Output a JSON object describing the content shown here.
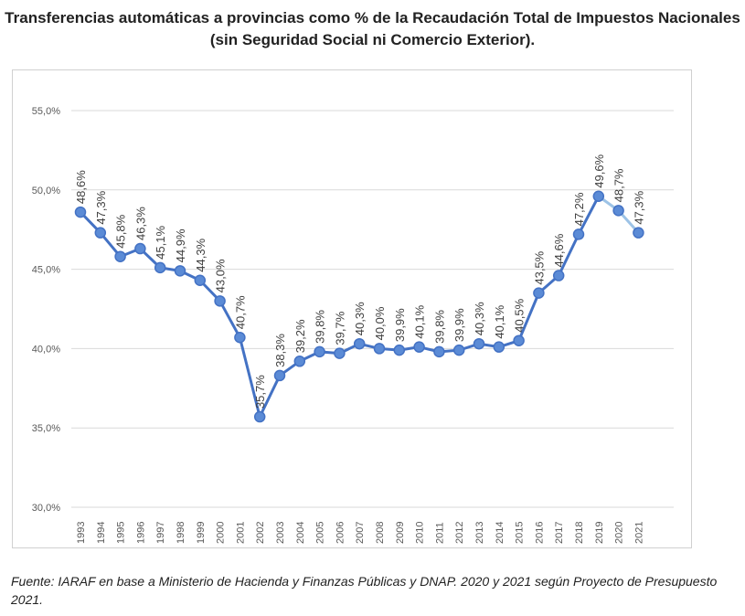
{
  "title": "Transferencias automáticas a provincias como % de la Recaudación Total de Impuestos Nacionales (sin Seguridad Social ni Comercio Exterior).",
  "source": "Fuente: IARAF en base a Ministerio de Hacienda y Finanzas Públicas y DNAP. 2020 y 2021 según Proyecto de Presupuesto 2021.",
  "chart_data": {
    "type": "line",
    "title": "Transferencias automáticas a provincias como % de la Recaudación Total de Impuestos Nacionales (sin Seguridad Social ni Comercio Exterior).",
    "xlabel": "",
    "ylabel": "",
    "ylim": [
      30,
      55
    ],
    "yticks": [
      "30,0%",
      "35,0%",
      "40,0%",
      "45,0%",
      "50,0%",
      "55,0%"
    ],
    "grid": true,
    "categories": [
      "1993",
      "1994",
      "1995",
      "1996",
      "1997",
      "1998",
      "1999",
      "2000",
      "2001",
      "2002",
      "2003",
      "2004",
      "2005",
      "2006",
      "2007",
      "2008",
      "2009",
      "2010",
      "2011",
      "2012",
      "2013",
      "2014",
      "2015",
      "2016",
      "2017",
      "2018",
      "2019",
      "2020",
      "2021"
    ],
    "values": [
      48.6,
      47.3,
      45.8,
      46.3,
      45.1,
      44.9,
      44.3,
      43.0,
      40.7,
      35.7,
      38.3,
      39.2,
      39.8,
      39.7,
      40.3,
      40.0,
      39.9,
      40.1,
      39.8,
      39.9,
      40.3,
      40.1,
      40.5,
      43.5,
      44.6,
      47.2,
      49.6,
      48.7,
      47.3
    ],
    "labels": [
      "48,6%",
      "47,3%",
      "45,8%",
      "46,3%",
      "45,1%",
      "44,9%",
      "44,3%",
      "43,0%",
      "40,7%",
      "35,7%",
      "38,3%",
      "39,2%",
      "39,8%",
      "39,7%",
      "40,3%",
      "40,0%",
      "39,9%",
      "40,1%",
      "39,8%",
      "39,9%",
      "40,3%",
      "40,1%",
      "40,5%",
      "43,5%",
      "44,6%",
      "47,2%",
      "49,6%",
      "48,7%",
      "47,3%"
    ],
    "projected_from": "2019",
    "colors": {
      "line": "#4472c4",
      "projected": "#9dc3e6",
      "marker": "#5b8bd6",
      "grid": "#d9d9d9",
      "text": "#595959"
    }
  }
}
